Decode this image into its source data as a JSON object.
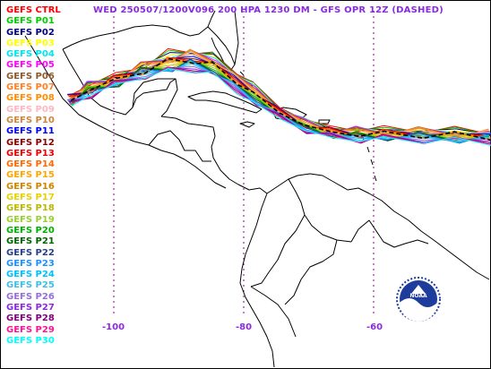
{
  "title": "WED 250507/1200V096  200 HPA 1230 DM - GFS OPR 12Z (DASHED)",
  "legend": [
    {
      "label": "GEFS CTRL",
      "color": "#ff0000"
    },
    {
      "label": "GEFS P01",
      "color": "#00cc00"
    },
    {
      "label": "GEFS P02",
      "color": "#000080"
    },
    {
      "label": "GEFS P03",
      "color": "#ffff00"
    },
    {
      "label": "GEFS P04",
      "color": "#00e5ee"
    },
    {
      "label": "GEFS P05",
      "color": "#ff00ff"
    },
    {
      "label": "GEFS P06",
      "color": "#8b5a2b"
    },
    {
      "label": "GEFS P07",
      "color": "#ff7f24"
    },
    {
      "label": "GEFS P08",
      "color": "#ff8c00"
    },
    {
      "label": "GEFS P09",
      "color": "#ffb6c1"
    },
    {
      "label": "GEFS P10",
      "color": "#cd853f"
    },
    {
      "label": "GEFS P11",
      "color": "#0000ff"
    },
    {
      "label": "GEFS P12",
      "color": "#8b0000"
    },
    {
      "label": "GEFS P13",
      "color": "#ee0000"
    },
    {
      "label": "GEFS P14",
      "color": "#ff6a00"
    },
    {
      "label": "GEFS P15",
      "color": "#ffa500"
    },
    {
      "label": "GEFS P16",
      "color": "#cd8500"
    },
    {
      "label": "GEFS P17",
      "color": "#e6d200"
    },
    {
      "label": "GEFS P18",
      "color": "#b8b800"
    },
    {
      "label": "GEFS P19",
      "color": "#9acd32"
    },
    {
      "label": "GEFS P20",
      "color": "#00b000"
    },
    {
      "label": "GEFS P21",
      "color": "#006400"
    },
    {
      "label": "GEFS P22",
      "color": "#27408b"
    },
    {
      "label": "GEFS P23",
      "color": "#1e90ff"
    },
    {
      "label": "GEFS P24",
      "color": "#00bfff"
    },
    {
      "label": "GEFS P25",
      "color": "#40c0e0"
    },
    {
      "label": "GEFS P26",
      "color": "#9370db"
    },
    {
      "label": "GEFS P27",
      "color": "#8a2be2"
    },
    {
      "label": "GEFS P28",
      "color": "#800080"
    },
    {
      "label": "GEFS P29",
      "color": "#ff1493"
    },
    {
      "label": "GEFS P30",
      "color": "#00ffff"
    }
  ],
  "longitudes": [
    "-100",
    "-80",
    "-60"
  ],
  "logo_text": "NOAA",
  "colors": {
    "title": "#8a2be2",
    "grid": "#8b008b",
    "coast": "#000000"
  }
}
